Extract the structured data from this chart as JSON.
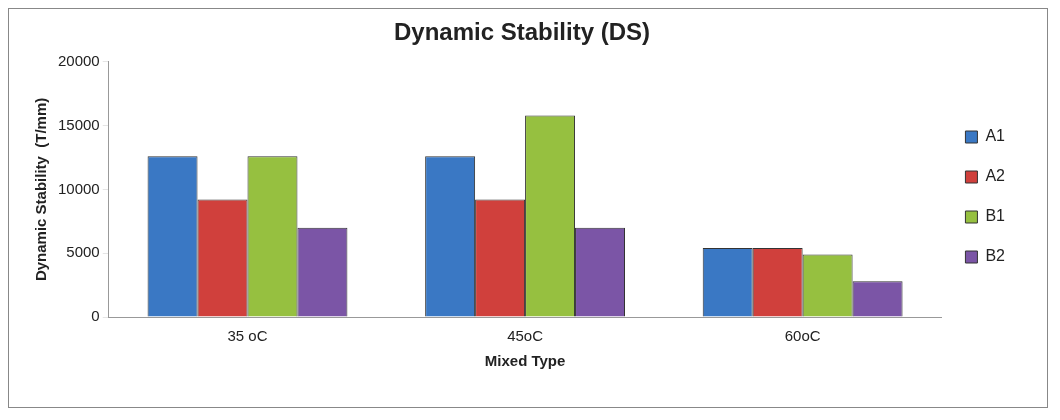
{
  "chart_data": {
    "type": "bar",
    "title": "Dynamic Stability (DS)",
    "xlabel": "Mixed Type",
    "ylabel": "Dynamic Stability  (T/mm)",
    "categories": [
      "35 oC",
      "45oC",
      "60oC"
    ],
    "series": [
      {
        "name": "A1",
        "color": "#3a78c4",
        "values": [
          12600,
          12600,
          5400
        ]
      },
      {
        "name": "A2",
        "color": "#d0403c",
        "values": [
          9200,
          9200,
          5400
        ]
      },
      {
        "name": "B1",
        "color": "#96c040",
        "values": [
          12600,
          15800,
          4900
        ]
      },
      {
        "name": "B2",
        "color": "#7b55a6",
        "values": [
          7000,
          7000,
          2800
        ]
      }
    ],
    "ylim": [
      0,
      20000
    ],
    "yticks": [
      0,
      5000,
      10000,
      15000,
      20000
    ],
    "grid": false,
    "legend": "right"
  }
}
